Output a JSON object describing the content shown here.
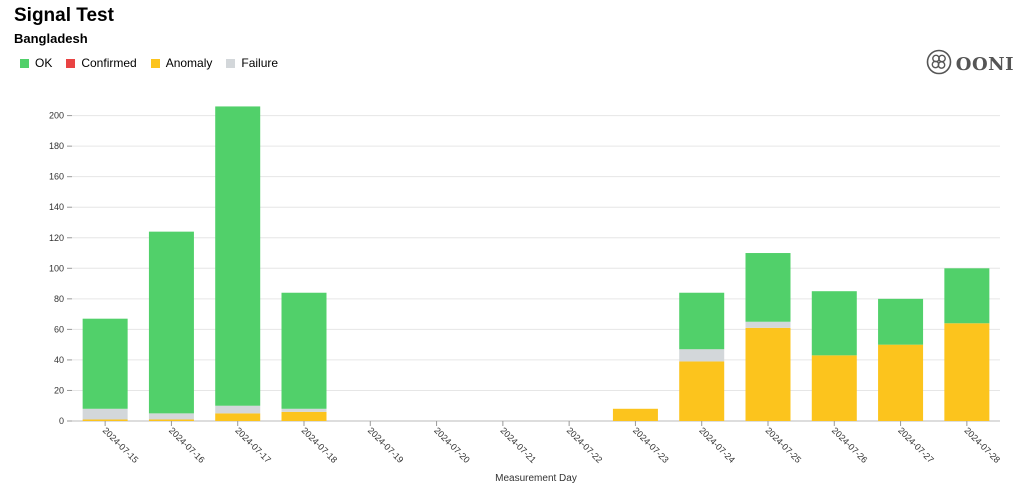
{
  "header": {
    "title": "Signal Test",
    "subtitle": "Bangladesh"
  },
  "legend": [
    {
      "label": "OK",
      "color": "#51d06a"
    },
    {
      "label": "Confirmed",
      "color": "#e94343"
    },
    {
      "label": "Anomaly",
      "color": "#fcc41d"
    },
    {
      "label": "Failure",
      "color": "#d3d7da"
    }
  ],
  "logo": {
    "text": "OONI"
  },
  "chart_data": {
    "type": "bar",
    "stacked": true,
    "categories": [
      "2024-07-15",
      "2024-07-16",
      "2024-07-17",
      "2024-07-18",
      "2024-07-19",
      "2024-07-20",
      "2024-07-21",
      "2024-07-22",
      "2024-07-23",
      "2024-07-24",
      "2024-07-25",
      "2024-07-26",
      "2024-07-27",
      "2024-07-28"
    ],
    "series": [
      {
        "name": "Anomaly",
        "color": "#fcc41d",
        "values": [
          1,
          1,
          5,
          6,
          0,
          0,
          0,
          0,
          8,
          39,
          61,
          43,
          50,
          64
        ]
      },
      {
        "name": "Failure",
        "color": "#d3d7da",
        "values": [
          7,
          4,
          5,
          2,
          0,
          0,
          0,
          0,
          0,
          8,
          4,
          0,
          0,
          0
        ]
      },
      {
        "name": "Confirmed",
        "color": "#e94343",
        "values": [
          0,
          0,
          0,
          0,
          0,
          0,
          0,
          0,
          0,
          0,
          0,
          0,
          0,
          0
        ]
      },
      {
        "name": "OK",
        "color": "#51d06a",
        "values": [
          59,
          119,
          196,
          76,
          0,
          0,
          0,
          0,
          0,
          37,
          45,
          42,
          30,
          36
        ]
      }
    ],
    "yticks": [
      0,
      20,
      40,
      60,
      80,
      100,
      120,
      140,
      160,
      180,
      200
    ],
    "ylim": [
      0,
      210
    ],
    "xlabel": "Measurement Day",
    "ylabel": "",
    "grid": true,
    "legend_position": "top-left"
  }
}
